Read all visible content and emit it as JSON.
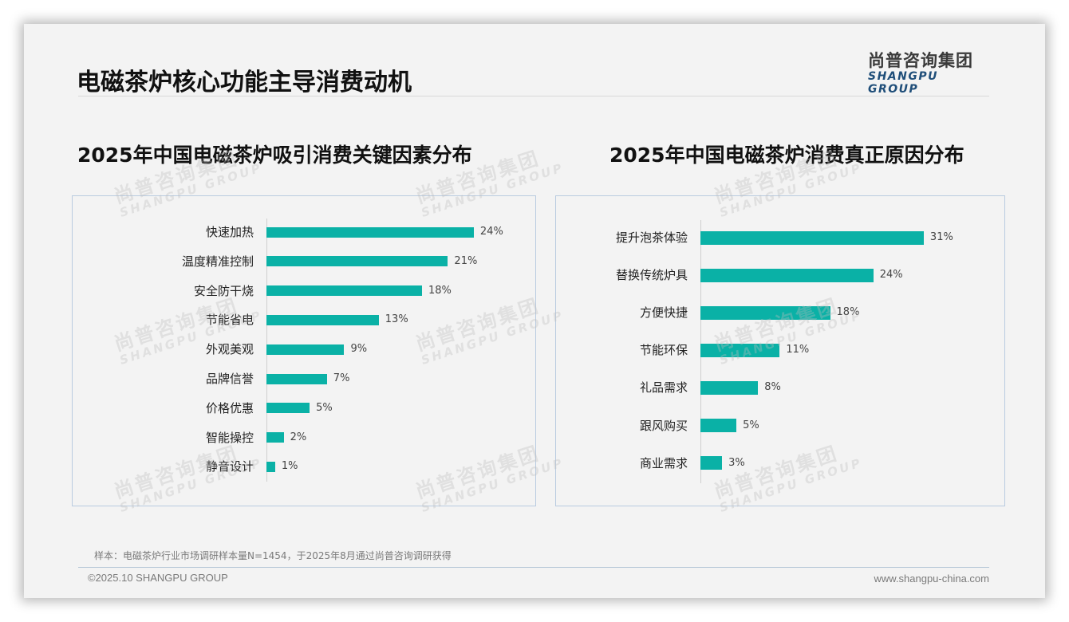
{
  "header": {
    "title": "电磁茶炉核心功能主导消费动机",
    "logo_cn": "尚普咨询集团",
    "logo_en": "SHANGPU GROUP"
  },
  "watermark": {
    "cn": "尚普咨询集团",
    "en": "SHANGPU GROUP"
  },
  "colors": {
    "bar": "#0AB1A6",
    "panel_border": "#B9CBE0",
    "logo_en": "#1F4E79"
  },
  "chart_data": [
    {
      "type": "bar",
      "orientation": "horizontal",
      "title": "2025年中国电磁茶炉吸引消费关键因素分布",
      "categories": [
        "快速加热",
        "温度精准控制",
        "安全防干烧",
        "节能省电",
        "外观美观",
        "品牌信誉",
        "价格优惠",
        "智能操控",
        "静音设计"
      ],
      "values": [
        24,
        21,
        18,
        13,
        9,
        7,
        5,
        2,
        1
      ],
      "value_labels": [
        "24%",
        "21%",
        "18%",
        "13%",
        "9%",
        "7%",
        "5%",
        "2%",
        "1%"
      ],
      "unit": "%",
      "xlabel": "",
      "ylabel": "",
      "grid": false,
      "legend": null
    },
    {
      "type": "bar",
      "orientation": "horizontal",
      "title": "2025年中国电磁茶炉消费真正原因分布",
      "categories": [
        "提升泡茶体验",
        "替换传统炉具",
        "方便快捷",
        "节能环保",
        "礼品需求",
        "跟风购买",
        "商业需求"
      ],
      "values": [
        31,
        24,
        18,
        11,
        8,
        5,
        3
      ],
      "value_labels": [
        "31%",
        "24%",
        "18%",
        "11%",
        "8%",
        "5%",
        "3%"
      ],
      "unit": "%",
      "xlabel": "",
      "ylabel": "",
      "grid": false,
      "legend": null
    }
  ],
  "footer": {
    "note": "样本：电磁茶炉行业市场调研样本量N=1454，于2025年8月通过尚普咨询调研获得",
    "copyright": "©2025.10 SHANGPU GROUP",
    "website": "www.shangpu-china.com"
  }
}
